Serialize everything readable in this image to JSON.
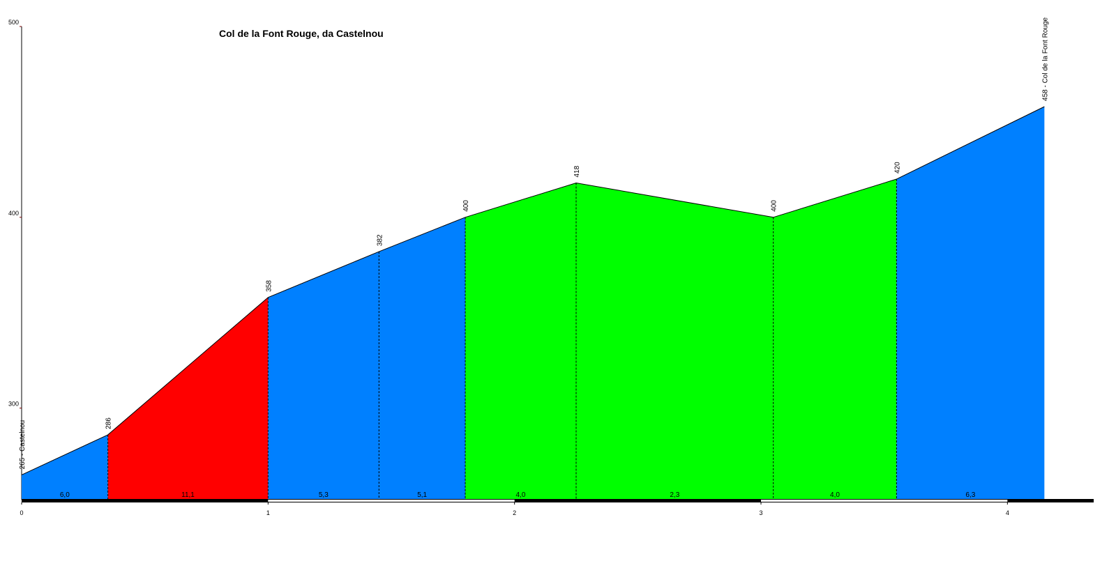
{
  "chart_data": {
    "type": "elevation-profile",
    "title": "Col de la Font Rouge, da Castelnou",
    "x": [
      0,
      0.35,
      1.0,
      1.45,
      1.8,
      2.25,
      3.05,
      3.55,
      4.15
    ],
    "values": [
      265,
      286,
      358,
      382,
      400,
      418,
      400,
      420,
      458
    ],
    "value_labels": [
      "265 - Castelnou",
      "286",
      "358",
      "382",
      "400",
      "418",
      "400",
      "420",
      "458 - Col de la Font Rouge"
    ],
    "segments": {
      "values": [
        6.0,
        11.1,
        5.3,
        5.1,
        4.0,
        2.3,
        4.0,
        6.3
      ],
      "value_labels": [
        "6,0",
        "11,1",
        "5,3",
        "5,1",
        "4,0",
        "2,3",
        "4,0",
        "6,3"
      ],
      "colors": [
        "#0080ff",
        "#ff0000",
        "#0080ff",
        "#0080ff",
        "#00ff00",
        "#00ff00",
        "#00ff00",
        "#0080ff"
      ]
    },
    "xlim": [
      0,
      4.35
    ],
    "xticks": [
      0,
      1,
      2,
      3,
      4
    ],
    "ylim": [
      252,
      500
    ],
    "yticks": [
      300,
      400,
      500
    ]
  }
}
